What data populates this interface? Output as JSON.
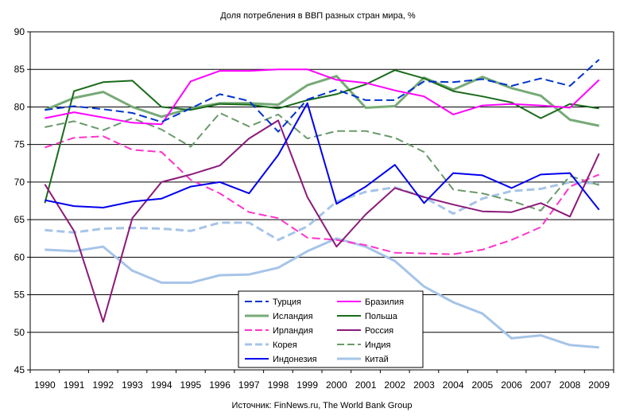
{
  "chart_data": {
    "type": "line",
    "title": "Доля потребления в ВВП разных стран мира, %",
    "source": "Источник: FinNews.ru, The World Bank Group",
    "xlabel": "",
    "ylabel": "",
    "ylim": [
      45,
      90
    ],
    "yticks": [
      "45",
      "50",
      "55",
      "60",
      "65",
      "70",
      "75",
      "80",
      "85",
      "90"
    ],
    "categories": [
      "1990",
      "1991",
      "1992",
      "1993",
      "1994",
      "1995",
      "1996",
      "1997",
      "1998",
      "1999",
      "2000",
      "2001",
      "2002",
      "2003",
      "2004",
      "2005",
      "2006",
      "2007",
      "2008",
      "2009"
    ],
    "grid": "horizontal",
    "legend_position": "bottom-center",
    "series": [
      {
        "name": "Турция",
        "color": "#0033cc",
        "dash": "dash",
        "width": 2,
        "values": [
          79.6,
          80.1,
          79.7,
          79.2,
          78.0,
          79.8,
          81.7,
          80.8,
          76.7,
          81.0,
          82.3,
          80.9,
          80.9,
          83.4,
          83.3,
          83.7,
          82.8,
          83.8,
          82.8,
          86.3
        ]
      },
      {
        "name": "Бразилия",
        "color": "#ff00ff",
        "dash": "solid",
        "width": 2,
        "values": [
          78.5,
          79.3,
          78.6,
          77.9,
          77.7,
          83.4,
          84.8,
          84.8,
          85.0,
          85.0,
          83.6,
          83.2,
          82.2,
          81.4,
          79.0,
          80.2,
          80.4,
          80.2,
          79.9,
          83.6
        ]
      },
      {
        "name": "Исландия",
        "color": "#77aa77",
        "dash": "solid",
        "width": 3,
        "values": [
          79.6,
          81.2,
          82.0,
          80.0,
          78.7,
          79.8,
          80.5,
          80.5,
          80.3,
          82.9,
          84.1,
          79.9,
          80.1,
          83.9,
          82.3,
          84.0,
          82.5,
          81.5,
          78.3,
          77.5
        ]
      },
      {
        "name": "Польша",
        "color": "#1a6b1a",
        "dash": "solid",
        "width": 2,
        "values": [
          67.2,
          82.1,
          83.3,
          83.5,
          80.0,
          79.6,
          80.4,
          80.3,
          79.8,
          80.9,
          81.7,
          83.0,
          84.9,
          83.8,
          82.1,
          81.4,
          80.6,
          78.5,
          80.4,
          79.8
        ]
      },
      {
        "name": "Ирландия",
        "color": "#ff33cc",
        "dash": "dash",
        "width": 2,
        "values": [
          74.6,
          75.9,
          76.1,
          74.3,
          74.0,
          70.3,
          68.5,
          66.0,
          65.2,
          62.6,
          62.3,
          61.6,
          60.6,
          60.5,
          60.4,
          61.0,
          62.3,
          64.0,
          69.4,
          71.0
        ]
      },
      {
        "name": "Россия",
        "color": "#8b1a7a",
        "dash": "solid",
        "width": 2,
        "values": [
          69.7,
          63.5,
          51.4,
          65.2,
          70.0,
          71.0,
          72.2,
          75.8,
          78.2,
          68.0,
          61.4,
          65.7,
          69.2,
          68.0,
          67.0,
          66.1,
          66.0,
          67.2,
          65.4,
          73.8
        ]
      },
      {
        "name": "Корея",
        "color": "#a6c4e8",
        "dash": "dash",
        "width": 3,
        "values": [
          63.6,
          63.3,
          63.8,
          63.9,
          63.8,
          63.5,
          64.6,
          64.6,
          62.3,
          64.1,
          67.4,
          68.7,
          69.3,
          68.0,
          65.8,
          67.8,
          68.8,
          69.1,
          70.0,
          69.8
        ]
      },
      {
        "name": "Индия",
        "color": "#6a9a6a",
        "dash": "dash",
        "width": 2,
        "values": [
          77.3,
          78.1,
          76.9,
          78.5,
          77.0,
          74.7,
          79.2,
          77.4,
          79.0,
          75.8,
          76.8,
          76.8,
          75.9,
          74.0,
          69.0,
          68.5,
          67.5,
          66.2,
          70.8,
          69.6
        ]
      },
      {
        "name": "Индонезия",
        "color": "#0000ee",
        "dash": "solid",
        "width": 2,
        "values": [
          67.6,
          66.8,
          66.6,
          67.4,
          67.8,
          69.4,
          70.0,
          68.5,
          73.6,
          80.5,
          67.1,
          69.4,
          72.3,
          67.2,
          71.2,
          70.9,
          69.2,
          71.0,
          71.2,
          66.3
        ]
      },
      {
        "name": "Китай",
        "color": "#a6c4e8",
        "dash": "solid",
        "width": 3,
        "values": [
          61.0,
          60.8,
          61.4,
          58.2,
          56.6,
          56.6,
          57.6,
          57.7,
          58.6,
          60.8,
          62.5,
          61.4,
          59.5,
          56.1,
          54.0,
          52.5,
          49.2,
          49.6,
          48.3,
          48.0
        ]
      }
    ]
  }
}
